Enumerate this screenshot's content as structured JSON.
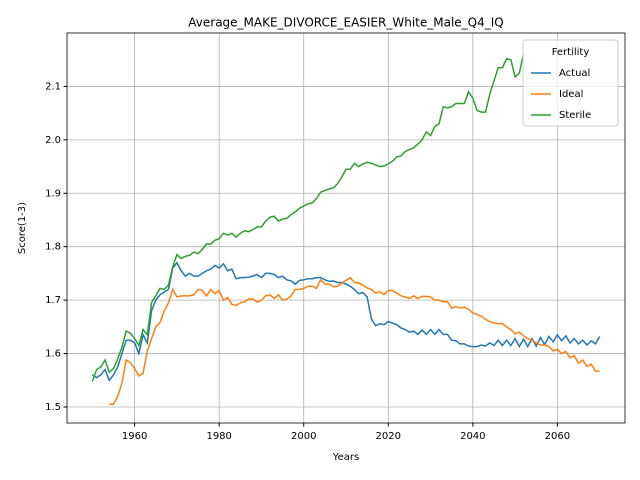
{
  "chart_data": {
    "type": "line",
    "title": "Average_MAKE_DIVORCE_EASIER_White_Male_Q4_IQ",
    "x_label": "Years",
    "y_label": "Score(1-3)",
    "legend_title": "Fertility",
    "legend": "upper right",
    "grid": true,
    "xlim": [
      1944,
      2076
    ],
    "ylim": [
      1.47,
      2.2
    ],
    "xticks": [
      1960,
      1980,
      2000,
      2020,
      2040,
      2060
    ],
    "yticks": [
      1.5,
      1.6,
      1.7,
      1.8,
      1.9,
      {
        "value": 2,
        "label": "2.0"
      },
      2.1
    ],
    "x": [
      1950,
      1951,
      1952,
      1953,
      1954,
      1955,
      1956,
      1957,
      1958,
      1959,
      1960,
      1961,
      1962,
      1963,
      1964,
      1965,
      1966,
      1967,
      1968,
      1969,
      1970,
      1971,
      1972,
      1973,
      1974,
      1975,
      1976,
      1977,
      1978,
      1979,
      1980,
      1981,
      1982,
      1983,
      1984,
      1985,
      1986,
      1987,
      1988,
      1989,
      1990,
      1991,
      1992,
      1993,
      1994,
      1995,
      1996,
      1997,
      1998,
      1999,
      2000,
      2001,
      2002,
      2003,
      2004,
      2005,
      2006,
      2007,
      2008,
      2009,
      2010,
      2011,
      2012,
      2013,
      2014,
      2015,
      2016,
      2017,
      2018,
      2019,
      2020,
      2021,
      2022,
      2023,
      2024,
      2025,
      2026,
      2027,
      2028,
      2029,
      2030,
      2031,
      2032,
      2033,
      2034,
      2035,
      2036,
      2037,
      2038,
      2039,
      2040,
      2041,
      2042,
      2043,
      2044,
      2045,
      2046,
      2047,
      2048,
      2049,
      2050,
      2051,
      2052,
      2053,
      2054,
      2055,
      2056,
      2057,
      2058,
      2059,
      2060,
      2061,
      2062,
      2063,
      2064,
      2065,
      2066,
      2067,
      2068,
      2069,
      2070
    ],
    "series": [
      {
        "name": "Actual",
        "color": "#1f77b4",
        "values": [
          1.56,
          1.555,
          1.56,
          1.57,
          1.55,
          1.56,
          1.575,
          1.6,
          1.625,
          1.625,
          1.62,
          1.6,
          1.635,
          1.62,
          1.68,
          1.7,
          1.71,
          1.715,
          1.72,
          1.76,
          1.77,
          1.755,
          1.745,
          1.75,
          1.745,
          1.745,
          1.75,
          1.755,
          1.758,
          1.765,
          1.76,
          1.768,
          1.755,
          1.758,
          1.74,
          1.742,
          1.742,
          1.743,
          1.745,
          1.748,
          1.742,
          1.75,
          1.75,
          1.748,
          1.742,
          1.745,
          1.738,
          1.736,
          1.73,
          1.737,
          1.738,
          1.74,
          1.74,
          1.742,
          1.742,
          1.738,
          1.735,
          1.736,
          1.733,
          1.733,
          1.73,
          1.726,
          1.72,
          1.712,
          1.714,
          1.706,
          1.665,
          1.652,
          1.656,
          1.654,
          1.66,
          1.657,
          1.654,
          1.648,
          1.645,
          1.64,
          1.642,
          1.636,
          1.644,
          1.636,
          1.645,
          1.636,
          1.645,
          1.636,
          1.636,
          1.625,
          1.624,
          1.618,
          1.618,
          1.614,
          1.613,
          1.613,
          1.616,
          1.614,
          1.62,
          1.615,
          1.625,
          1.615,
          1.625,
          1.615,
          1.628,
          1.613,
          1.627,
          1.613,
          1.628,
          1.614,
          1.63,
          1.617,
          1.632,
          1.622,
          1.635,
          1.624,
          1.633,
          1.62,
          1.628,
          1.618,
          1.625,
          1.616,
          1.624,
          1.618,
          1.632
        ]
      },
      {
        "name": "Ideal",
        "color": "#ff7f0e",
        "values": [
          null,
          null,
          null,
          null,
          1.505,
          1.505,
          1.52,
          1.545,
          1.588,
          1.583,
          1.572,
          1.558,
          1.563,
          1.605,
          1.628,
          1.65,
          1.658,
          1.68,
          1.695,
          1.72,
          1.706,
          1.708,
          1.708,
          1.708,
          1.71,
          1.72,
          1.718,
          1.708,
          1.72,
          1.712,
          1.718,
          1.7,
          1.705,
          1.692,
          1.69,
          1.695,
          1.697,
          1.702,
          1.702,
          1.696,
          1.7,
          1.708,
          1.71,
          1.703,
          1.71,
          1.7,
          1.702,
          1.708,
          1.72,
          1.72,
          1.722,
          1.726,
          1.726,
          1.722,
          1.738,
          1.73,
          1.73,
          1.725,
          1.726,
          1.732,
          1.737,
          1.742,
          1.733,
          1.732,
          1.728,
          1.723,
          1.72,
          1.713,
          1.716,
          1.71,
          1.718,
          1.718,
          1.713,
          1.708,
          1.706,
          1.703,
          1.708,
          1.703,
          1.707,
          1.707,
          1.706,
          1.7,
          1.7,
          1.697,
          1.697,
          1.685,
          1.688,
          1.685,
          1.687,
          1.683,
          1.676,
          1.673,
          1.67,
          1.664,
          1.66,
          1.657,
          1.656,
          1.656,
          1.65,
          1.645,
          1.637,
          1.64,
          1.633,
          1.628,
          1.625,
          1.62,
          1.616,
          1.616,
          1.613,
          1.605,
          1.608,
          1.6,
          1.604,
          1.592,
          1.596,
          1.582,
          1.588,
          1.576,
          1.58,
          1.567,
          1.567
        ]
      },
      {
        "name": "Sterile",
        "color": "#2ca02c",
        "values": [
          1.548,
          1.57,
          1.575,
          1.588,
          1.565,
          1.572,
          1.59,
          1.612,
          1.642,
          1.638,
          1.628,
          1.615,
          1.645,
          1.635,
          1.695,
          1.708,
          1.722,
          1.72,
          1.728,
          1.762,
          1.785,
          1.778,
          1.782,
          1.784,
          1.79,
          1.787,
          1.795,
          1.805,
          1.805,
          1.812,
          1.815,
          1.825,
          1.822,
          1.825,
          1.818,
          1.825,
          1.83,
          1.828,
          1.832,
          1.837,
          1.837,
          1.848,
          1.855,
          1.857,
          1.848,
          1.852,
          1.853,
          1.86,
          1.865,
          1.872,
          1.876,
          1.88,
          1.882,
          1.89,
          1.902,
          1.905,
          1.908,
          1.91,
          1.918,
          1.93,
          1.945,
          1.945,
          1.956,
          1.95,
          1.955,
          1.958,
          1.956,
          1.953,
          1.95,
          1.951,
          1.955,
          1.96,
          1.968,
          1.97,
          1.978,
          1.982,
          1.985,
          1.992,
          2.0,
          2.015,
          2.008,
          2.025,
          2.03,
          2.062,
          2.06,
          2.062,
          2.068,
          2.068,
          2.068,
          2.09,
          2.078,
          2.055,
          2.052,
          2.052,
          2.085,
          2.11,
          2.135,
          2.135,
          2.152,
          2.15,
          2.118,
          2.125,
          2.162,
          null,
          null,
          null,
          null,
          null,
          null,
          null,
          null,
          null,
          null,
          null,
          null,
          null,
          null,
          null,
          null,
          null,
          null
        ]
      }
    ]
  }
}
